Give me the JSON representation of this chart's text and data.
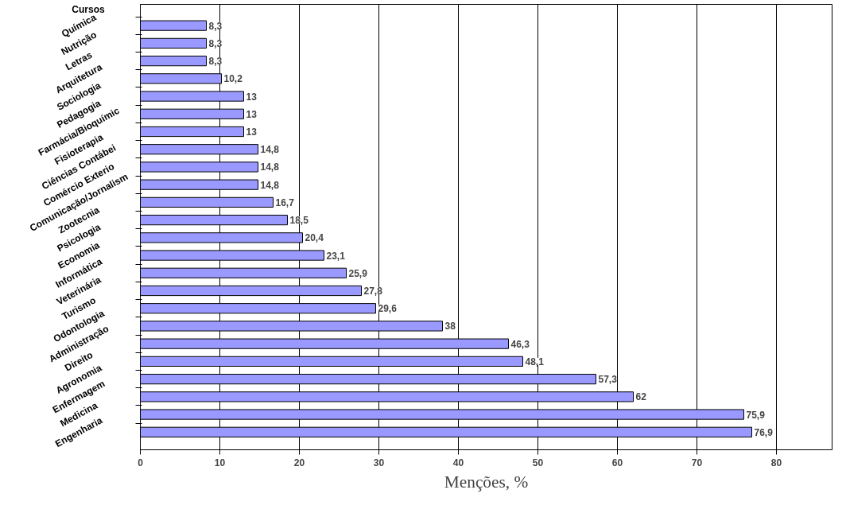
{
  "chart_data": {
    "type": "bar",
    "orientation": "horizontal",
    "ylabel": "Cursos",
    "xlabel": "Menções, %",
    "categories": [
      "Química",
      "Nutrição",
      "Letras",
      "Arquitetura",
      "Sociologia",
      "Pedagogia",
      "Farmácia/Bioquímic",
      "Fisioterapia",
      "Ciências Contábei",
      "Comércio Exterio",
      "Comunicação/Jornalism",
      "Zootecnia",
      "Psicologia",
      "Economia",
      "Informática",
      "Veterinária",
      "Turismo",
      "Odontologia",
      "Administração",
      "Direito",
      "Agronomia",
      "Enfermagem",
      "Medicina",
      "Engenharia"
    ],
    "values": [
      8.3,
      8.3,
      8.3,
      10.2,
      13,
      13,
      13,
      14.8,
      14.8,
      14.8,
      16.7,
      18.5,
      20.4,
      23.1,
      25.9,
      27.8,
      29.6,
      38,
      46.3,
      48.1,
      57.3,
      62,
      75.9,
      76.9
    ],
    "value_labels": [
      "8,3",
      "8,3",
      "8,3",
      "10,2",
      "13",
      "13",
      "13",
      "14,8",
      "14,8",
      "14,8",
      "16,7",
      "18,5",
      "20,4",
      "23,1",
      "25,9",
      "27,8",
      "29,6",
      "38",
      "46,3",
      "48,1",
      "57,3",
      "62",
      "75,9",
      "76,9"
    ],
    "color": "#9999ff",
    "xlim": [
      0,
      87
    ],
    "xticks": [
      0,
      10,
      20,
      30,
      40,
      50,
      60,
      70,
      80
    ],
    "grid": "x",
    "legend": false
  }
}
